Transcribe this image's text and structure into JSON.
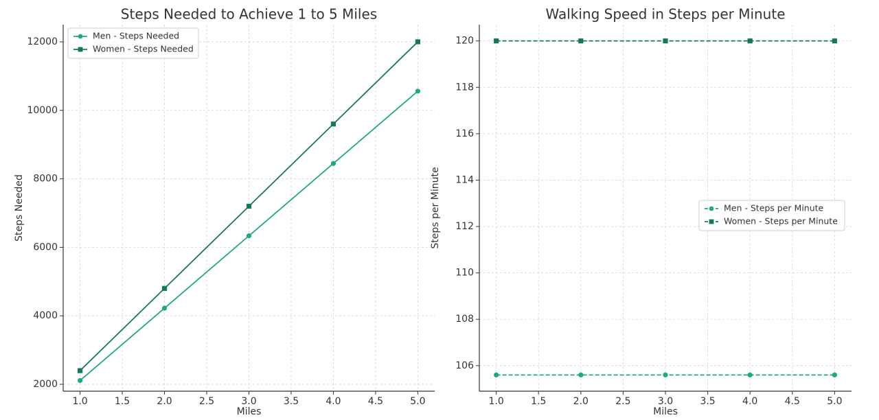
{
  "chart_data": [
    {
      "type": "line",
      "title": "Steps Needed to Achieve 1 to 5 Miles",
      "xlabel": "Miles",
      "ylabel": "Steps Needed",
      "x": [
        1.0,
        2.0,
        3.0,
        4.0,
        5.0
      ],
      "xlim": [
        0.8,
        5.2
      ],
      "ylim": [
        1800,
        12500
      ],
      "xticks": [
        1.0,
        1.5,
        2.0,
        2.5,
        3.0,
        3.5,
        4.0,
        4.5,
        5.0
      ],
      "xtick_labels": [
        "1.0",
        "1.5",
        "2.0",
        "2.5",
        "3.0",
        "3.5",
        "4.0",
        "4.5",
        "5.0"
      ],
      "yticks": [
        2000,
        4000,
        6000,
        8000,
        10000,
        12000
      ],
      "ytick_labels": [
        "2000",
        "4000",
        "6000",
        "8000",
        "10000",
        "12000"
      ],
      "grid": true,
      "legend_position": "upper-left",
      "series": [
        {
          "name": "Men - Steps Needed",
          "values": [
            2112,
            4224,
            6336,
            8448,
            10560
          ],
          "color": "#1fa884",
          "marker": "circle",
          "linestyle": "solid"
        },
        {
          "name": "Women - Steps Needed",
          "values": [
            2400,
            4800,
            7200,
            9600,
            12000
          ],
          "color": "#16775f",
          "marker": "square",
          "linestyle": "solid"
        }
      ]
    },
    {
      "type": "line",
      "title": "Walking Speed in Steps per Minute",
      "xlabel": "Miles",
      "ylabel": "Steps per Minute",
      "x": [
        1.0,
        2.0,
        3.0,
        4.0,
        5.0
      ],
      "xlim": [
        0.8,
        5.2
      ],
      "ylim": [
        104.9,
        120.7
      ],
      "xticks": [
        1.0,
        1.5,
        2.0,
        2.5,
        3.0,
        3.5,
        4.0,
        4.5,
        5.0
      ],
      "xtick_labels": [
        "1.0",
        "1.5",
        "2.0",
        "2.5",
        "3.0",
        "3.5",
        "4.0",
        "4.5",
        "5.0"
      ],
      "yticks": [
        106,
        108,
        110,
        112,
        114,
        116,
        118,
        120
      ],
      "ytick_labels": [
        "106",
        "108",
        "110",
        "112",
        "114",
        "116",
        "118",
        "120"
      ],
      "grid": true,
      "legend_position": "center-right",
      "series": [
        {
          "name": "Men - Steps per Minute",
          "values": [
            105.6,
            105.6,
            105.6,
            105.6,
            105.6
          ],
          "color": "#1fa884",
          "marker": "circle",
          "linestyle": "dashed"
        },
        {
          "name": "Women - Steps per Minute",
          "values": [
            120,
            120,
            120,
            120,
            120
          ],
          "color": "#16775f",
          "marker": "square",
          "linestyle": "dashed"
        }
      ]
    }
  ]
}
